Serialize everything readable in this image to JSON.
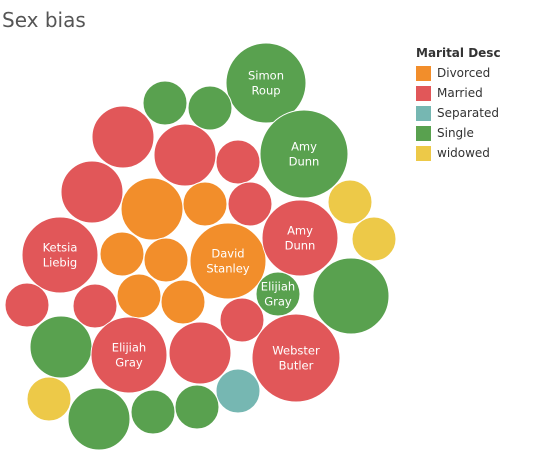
{
  "chart_data": {
    "type": "packed-bubble",
    "title": "Sex bias",
    "legend": {
      "title": "Marital Desc",
      "placement": "top-right",
      "entries": [
        {
          "name": "Divorced",
          "color": "#f28e2b"
        },
        {
          "name": "Married",
          "color": "#e15759"
        },
        {
          "name": "Separated",
          "color": "#76b7b2"
        },
        {
          "name": "Single",
          "color": "#59a14f"
        },
        {
          "name": "widowed",
          "color": "#edc948"
        }
      ]
    },
    "bubbles": [
      {
        "category": "Single",
        "label": "Simon Roup"
      },
      {
        "category": "Single",
        "label": ""
      },
      {
        "category": "Single",
        "label": ""
      },
      {
        "category": "Married",
        "label": ""
      },
      {
        "category": "Married",
        "label": ""
      },
      {
        "category": "Married",
        "label": ""
      },
      {
        "category": "Single",
        "label": "Amy Dunn"
      },
      {
        "category": "Married",
        "label": ""
      },
      {
        "category": "Divorced",
        "label": ""
      },
      {
        "category": "Divorced",
        "label": ""
      },
      {
        "category": "Married",
        "label": ""
      },
      {
        "category": "widowed",
        "label": ""
      },
      {
        "category": "Married",
        "label": "Ketsia Liebig"
      },
      {
        "category": "Divorced",
        "label": ""
      },
      {
        "category": "Divorced",
        "label": ""
      },
      {
        "category": "Divorced",
        "label": "David Stanley"
      },
      {
        "category": "Married",
        "label": "Amy Dunn"
      },
      {
        "category": "widowed",
        "label": ""
      },
      {
        "category": "Divorced",
        "label": ""
      },
      {
        "category": "Divorced",
        "label": ""
      },
      {
        "category": "Married",
        "label": ""
      },
      {
        "category": "Single",
        "label": "Elijiah Gray"
      },
      {
        "category": "Single",
        "label": ""
      },
      {
        "category": "Married",
        "label": ""
      },
      {
        "category": "Married",
        "label": ""
      },
      {
        "category": "Single",
        "label": ""
      },
      {
        "category": "Married",
        "label": "Elijiah Gray"
      },
      {
        "category": "Married",
        "label": ""
      },
      {
        "category": "Married",
        "label": "Webster Butler"
      },
      {
        "category": "widowed",
        "label": ""
      },
      {
        "category": "Separated",
        "label": ""
      },
      {
        "category": "Single",
        "label": ""
      },
      {
        "category": "Single",
        "label": ""
      },
      {
        "category": "Single",
        "label": ""
      }
    ]
  }
}
